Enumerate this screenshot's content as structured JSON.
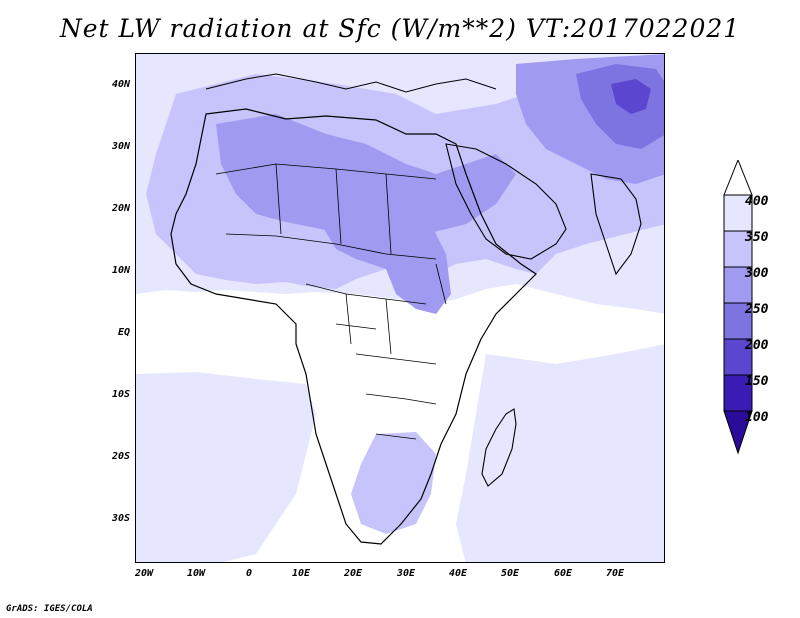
{
  "title": "Net LW radiation at Sfc (W/m**2) VT:2017022021",
  "credit": "GrADS: IGES/COLA",
  "lat_labels": [
    "40N",
    "30N",
    "20N",
    "10N",
    "EQ",
    "10S",
    "20S",
    "30S"
  ],
  "lon_labels": [
    "20W",
    "10W",
    "0",
    "10E",
    "20E",
    "30E",
    "40E",
    "50E",
    "60E",
    "70E"
  ],
  "colorbar": {
    "labels": [
      "400",
      "350",
      "300",
      "250",
      "200",
      "150",
      "100"
    ],
    "colors": [
      "#ffffff",
      "#e6e6ff",
      "#c6c4fa",
      "#a09af0",
      "#7d74e2",
      "#5a46cf",
      "#3a1cb4",
      "#2a0b9a"
    ]
  },
  "map_colors": {
    "background": "#ffffff",
    "light": "#e6e6ff",
    "medium": "#c6c4fa",
    "strong": "#a09af0",
    "deep": "#7d74e2",
    "darkest": "#5a46cf",
    "border": "#000000"
  }
}
